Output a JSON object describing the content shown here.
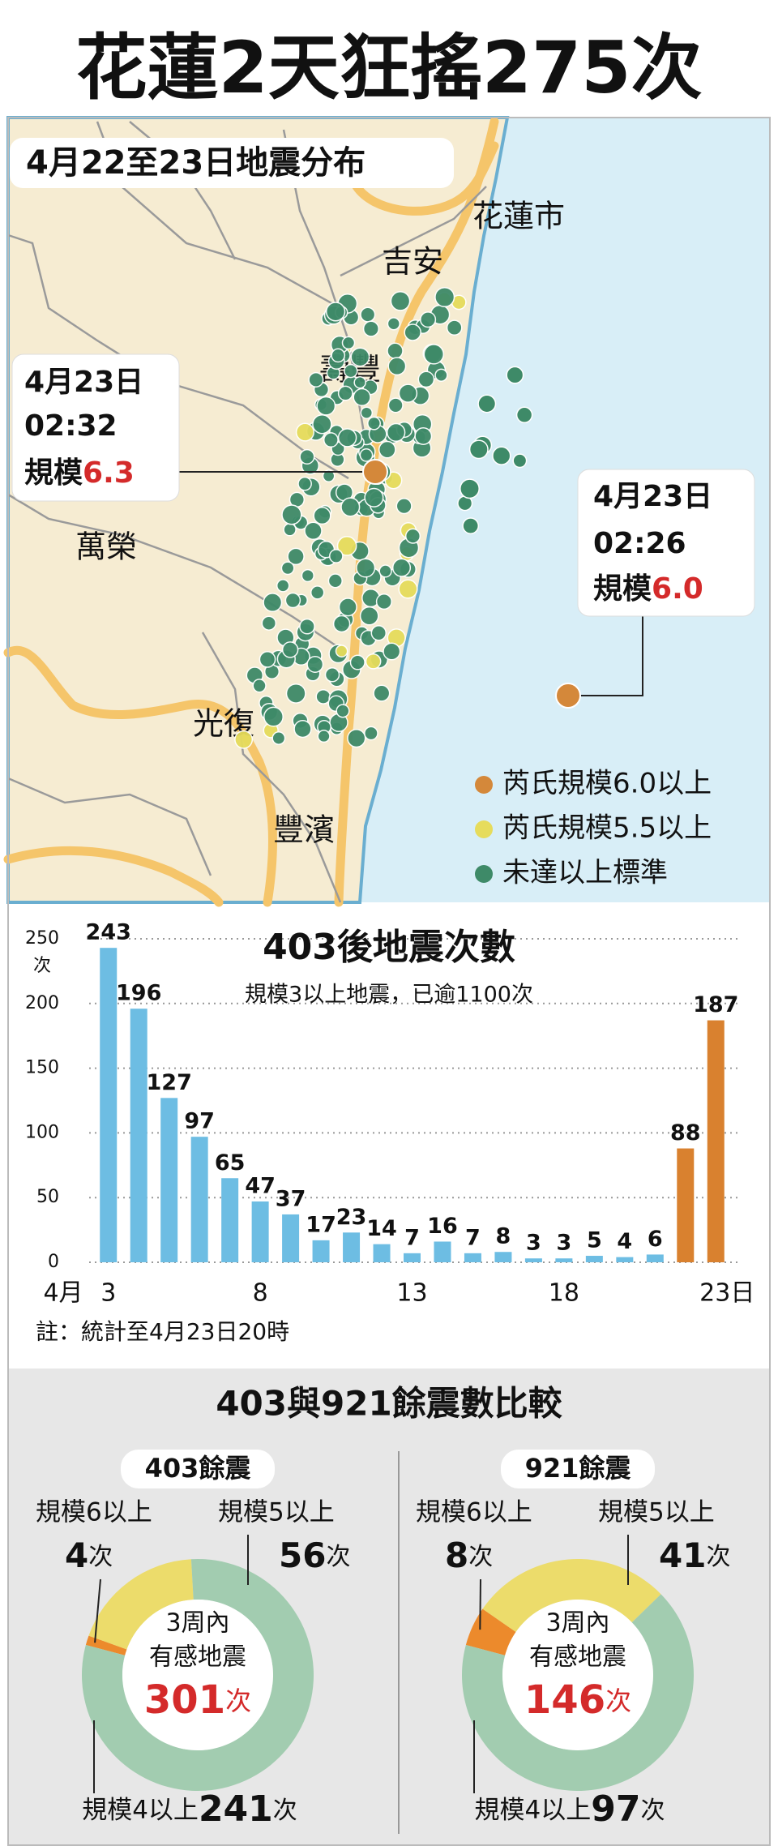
{
  "title": "花蓮2天狂搖275次",
  "map": {
    "title": "4月22至23日地震分布",
    "places": [
      "花蓮市",
      "吉安",
      "壽豐",
      "萬榮",
      "光復",
      "豐濱"
    ],
    "callouts": [
      {
        "date": "4月23日",
        "time": "02:32",
        "label": "規模",
        "magnitude": "6.3"
      },
      {
        "date": "4月23日",
        "time": "02:26",
        "label": "規模",
        "magnitude": "6.0"
      }
    ],
    "legend": [
      {
        "name": "芮氏規模6.0以上",
        "color": "#d4883a"
      },
      {
        "name": "芮氏規模5.5以上",
        "color": "#e6dc5c"
      },
      {
        "name": "未達以上標準",
        "color": "#3e8a68"
      }
    ]
  },
  "comparison_title": "403與921餘震數比較",
  "chart_data": [
    {
      "type": "bar",
      "title": "403後地震次數",
      "subtitle": "規模3以上地震，已逾1100次",
      "note": "註：統計至4月23日20時",
      "ylabel": "次",
      "xlabel": "4月",
      "categories": [
        "3",
        null,
        null,
        null,
        null,
        "8",
        null,
        null,
        null,
        null,
        "13",
        null,
        null,
        null,
        null,
        "18",
        null,
        null,
        null,
        null,
        "23日"
      ],
      "values": [
        243,
        196,
        127,
        97,
        65,
        47,
        37,
        17,
        23,
        14,
        7,
        16,
        7,
        8,
        3,
        3,
        5,
        4,
        6,
        88,
        187
      ],
      "colors": [
        "#6dbde3",
        "#6dbde3",
        "#6dbde3",
        "#6dbde3",
        "#6dbde3",
        "#6dbde3",
        "#6dbde3",
        "#6dbde3",
        "#6dbde3",
        "#6dbde3",
        "#6dbde3",
        "#6dbde3",
        "#6dbde3",
        "#6dbde3",
        "#6dbde3",
        "#6dbde3",
        "#6dbde3",
        "#6dbde3",
        "#6dbde3",
        "#d9812f",
        "#d9812f"
      ],
      "ylim": [
        0,
        250
      ],
      "yticks": [
        0,
        50,
        100,
        150,
        200,
        250
      ],
      "grid": true
    },
    {
      "type": "pie",
      "title": "403餘震",
      "center_lines": [
        "3周內",
        "有感地震"
      ],
      "total": 301,
      "unit": "次",
      "categories": [
        "規模6以上",
        "規模5以上",
        "規模4以上"
      ],
      "values": [
        4,
        56,
        241
      ],
      "colors": [
        "#ec8a2c",
        "#ecdc6b",
        "#a2ccb0"
      ]
    },
    {
      "type": "pie",
      "title": "921餘震",
      "center_lines": [
        "3周內",
        "有感地震"
      ],
      "total": 146,
      "unit": "次",
      "categories": [
        "規模6以上",
        "規模5以上",
        "規模4以上"
      ],
      "values": [
        8,
        41,
        97
      ],
      "colors": [
        "#ec8a2c",
        "#ecdc6b",
        "#a2ccb0"
      ]
    }
  ]
}
